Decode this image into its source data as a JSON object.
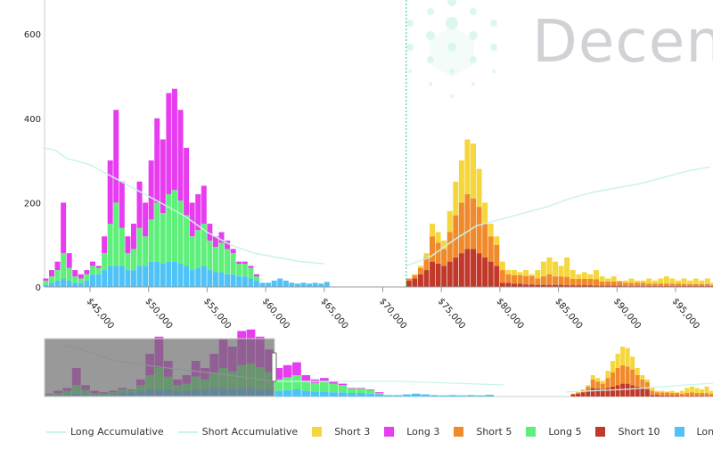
{
  "logo": {
    "text": "Decen"
  },
  "chart_data": {
    "type": "bar",
    "stacked": true,
    "bin_size": 500,
    "x_range": [
      41000,
      98000
    ],
    "ylim": [
      0,
      620
    ],
    "y_ticks": [
      0,
      200,
      400,
      600
    ],
    "x_ticks": [
      45000,
      50000,
      55000,
      60000,
      65000,
      70000,
      75000,
      80000,
      85000,
      90000,
      95000
    ],
    "x_tick_labels": [
      "$45,000",
      "$50,000",
      "$55,000",
      "$60,000",
      "$65,000",
      "$70,000",
      "$75,000",
      "$80,000",
      "$85,000",
      "$90,000",
      "$95,000"
    ],
    "current_price": 72000,
    "legend_position": "bottom",
    "long_start": 41000,
    "short_start": 71500,
    "series": [
      {
        "name": "Long 10",
        "side": "long",
        "color": "#4fc3f7",
        "values": [
          5,
          10,
          15,
          20,
          15,
          10,
          10,
          15,
          30,
          30,
          40,
          50,
          50,
          50,
          40,
          40,
          50,
          50,
          60,
          60,
          55,
          60,
          60,
          55,
          50,
          40,
          45,
          50,
          40,
          35,
          35,
          30,
          30,
          25,
          25,
          20,
          15,
          10,
          10,
          15,
          20,
          15,
          10,
          8,
          10,
          8,
          10,
          8,
          12,
          0
        ]
      },
      {
        "name": "Long 5",
        "side": "long",
        "color": "#5ef07a",
        "values": [
          10,
          15,
          25,
          60,
          30,
          15,
          10,
          15,
          20,
          15,
          40,
          100,
          150,
          90,
          40,
          50,
          90,
          70,
          100,
          140,
          120,
          160,
          170,
          150,
          120,
          80,
          90,
          100,
          70,
          60,
          70,
          60,
          50,
          30,
          30,
          25,
          10,
          0,
          0,
          0,
          0,
          0,
          0,
          0,
          0,
          0,
          0,
          0,
          0,
          0
        ]
      },
      {
        "name": "Long 3",
        "side": "long",
        "color": "#e83cf0",
        "values": [
          5,
          15,
          20,
          120,
          35,
          15,
          10,
          10,
          10,
          5,
          40,
          150,
          220,
          110,
          40,
          60,
          110,
          80,
          140,
          200,
          175,
          240,
          240,
          215,
          160,
          80,
          85,
          90,
          40,
          25,
          25,
          20,
          10,
          5,
          5,
          5,
          5,
          0,
          0,
          0,
          0,
          0,
          0,
          0,
          0,
          0,
          0,
          0,
          0,
          0
        ]
      },
      {
        "name": "Short 10",
        "side": "short",
        "color": "#c0392b",
        "values": [
          0,
          15,
          20,
          30,
          40,
          60,
          55,
          50,
          60,
          70,
          80,
          90,
          90,
          80,
          70,
          60,
          50,
          10,
          10,
          8,
          8,
          6,
          6,
          5,
          5,
          5,
          5,
          5,
          4,
          4,
          4,
          4,
          4,
          3,
          3,
          3,
          3,
          3,
          2,
          2,
          2,
          2,
          2,
          2,
          2,
          2,
          2,
          2,
          2,
          2,
          2,
          2,
          2,
          2
        ]
      },
      {
        "name": "Short 5",
        "side": "short",
        "color": "#f08a2c",
        "values": [
          0,
          5,
          8,
          15,
          30,
          60,
          50,
          40,
          70,
          100,
          120,
          130,
          120,
          110,
          80,
          60,
          50,
          30,
          20,
          20,
          20,
          20,
          20,
          15,
          20,
          25,
          20,
          20,
          20,
          15,
          15,
          15,
          15,
          15,
          10,
          10,
          10,
          10,
          8,
          8,
          8,
          8,
          6,
          6,
          6,
          6,
          6,
          6,
          5,
          5,
          5,
          5,
          5,
          3
        ]
      },
      {
        "name": "Short 3",
        "side": "short",
        "color": "#f5d63d",
        "values": [
          0,
          0,
          2,
          5,
          10,
          30,
          25,
          20,
          50,
          80,
          100,
          130,
          130,
          90,
          50,
          30,
          20,
          20,
          10,
          12,
          7,
          14,
          4,
          20,
          35,
          40,
          35,
          25,
          46,
          21,
          11,
          16,
          11,
          22,
          12,
          7,
          12,
          2,
          5,
          10,
          5,
          5,
          12,
          7,
          12,
          17,
          12,
          7,
          13,
          8,
          13,
          8,
          13,
          5
        ]
      }
    ],
    "lines": [
      {
        "name": "Long Accumulative",
        "color": "#c8f5e6",
        "x": [
          41000,
          42000,
          43000,
          45000,
          47000,
          49000,
          51000,
          53000,
          55000,
          57000,
          59000,
          61000,
          63000,
          65000
        ],
        "y": [
          330,
          325,
          305,
          290,
          260,
          230,
          200,
          170,
          130,
          100,
          80,
          70,
          60,
          55
        ]
      },
      {
        "name": "Short Accumulative",
        "color": "#c8f5e6",
        "x": [
          72000,
          74000,
          76000,
          78000,
          80000,
          82000,
          84000,
          86000,
          88000,
          90000,
          92000,
          94000,
          96000,
          98000
        ],
        "y": [
          50,
          70,
          110,
          145,
          160,
          175,
          190,
          210,
          225,
          235,
          245,
          260,
          275,
          285
        ]
      }
    ],
    "legend": [
      "Long Accumulative",
      "Short Accumulative",
      "Short 3",
      "Long 3",
      "Short 5",
      "Long 5",
      "Short 10",
      "Long 10"
    ]
  }
}
